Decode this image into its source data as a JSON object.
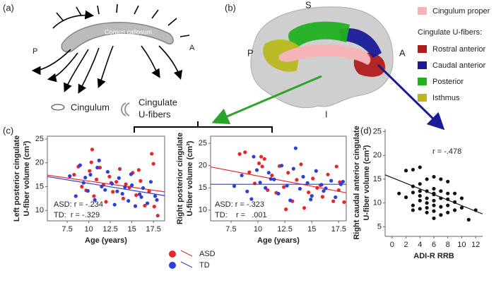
{
  "panels": {
    "a": {
      "label": "(a)",
      "corpus": "Corpus callosum",
      "posterior": "P",
      "anterior": "A",
      "cingulum": "Cingulum",
      "u_fibers": [
        "Cingulate",
        "U-fibers"
      ]
    },
    "b": {
      "label": "(b)",
      "superior": "S",
      "posterior": "P",
      "anterior": "A",
      "inferior": "I",
      "legend_top": {
        "label": "Cingulum proper",
        "color": "#f4b4b8"
      },
      "legend_header": "Cingulate U-fibers:",
      "legend": [
        {
          "label": "Rostral anterior",
          "color": "#b01c1c"
        },
        {
          "label": "Caudal anterior",
          "color": "#1a1a9a"
        },
        {
          "label": "Posterior",
          "color": "#22b022"
        },
        {
          "label": "Isthmus",
          "color": "#b8b820"
        }
      ]
    },
    "c": {
      "label": "(c)"
    },
    "d": {
      "label": "(d)"
    }
  },
  "chart_data": [
    {
      "type": "scatter",
      "ylabel": [
        "Left posterior cingulate",
        "U-fiber volume (cm³)"
      ],
      "xlabel": "Age (years)",
      "xlim": [
        5.2,
        18.8
      ],
      "xticks": [
        7.5,
        10.0,
        12.5,
        15.0,
        17.5
      ],
      "ylim": [
        7.8,
        25.6
      ],
      "yticks": [
        10,
        15,
        20,
        25
      ],
      "legend": "bottom",
      "annotations": [
        "ASD: r = -.234",
        "TD:  r = -.329"
      ],
      "series": [
        {
          "name": "ASD",
          "color": "#e8262a",
          "x": [
            8.3,
            8.8,
            9.2,
            9.7,
            10.1,
            10.4,
            10.6,
            10.9,
            11.3,
            11.7,
            12.0,
            12.4,
            12.8,
            13.2,
            13.6,
            14.0,
            14.3,
            14.7,
            15.1,
            15.5,
            16.0,
            16.5,
            17.0,
            17.3,
            17.6,
            18.0,
            10.3,
            12.6,
            15.8,
            17.5
          ],
          "values": [
            17.5,
            19.2,
            15.0,
            14.2,
            18.3,
            22.8,
            13.0,
            16.5,
            19.0,
            15.4,
            11.8,
            17.1,
            13.9,
            16.0,
            18.7,
            12.5,
            15.5,
            14.8,
            17.9,
            13.2,
            16.2,
            11.0,
            14.0,
            21.9,
            10.8,
            8.9,
            20.1,
            15.8,
            18.5,
            19.8
          ],
          "fit": [
            17.4,
            13.9
          ]
        },
        {
          "name": "TD",
          "color": "#2a3fdc",
          "x": [
            7.8,
            8.5,
            9.0,
            9.4,
            9.9,
            10.2,
            10.7,
            11.0,
            11.5,
            11.9,
            12.2,
            12.7,
            13.0,
            13.5,
            13.9,
            14.2,
            14.6,
            15.0,
            15.4,
            15.9,
            16.3,
            16.8,
            17.2,
            17.7,
            9.6,
            11.2,
            13.3,
            14.9,
            16.1,
            17.9
          ],
          "values": [
            17.2,
            13.0,
            19.5,
            15.8,
            14.1,
            17.5,
            12.2,
            19.0,
            15.0,
            14.3,
            18.1,
            15.6,
            11.2,
            16.8,
            13.5,
            14.9,
            12.0,
            15.3,
            10.9,
            13.4,
            14.7,
            11.5,
            16.0,
            13.0,
            16.9,
            20.5,
            14.0,
            17.6,
            12.8,
            12.2
          ],
          "fit": [
            17.1,
            13.1
          ]
        }
      ]
    },
    {
      "type": "scatter",
      "ylabel": [
        "Right posterior cingulate",
        "U-fiber volume (cm³)"
      ],
      "xlabel": "Age (years)",
      "xlim": [
        5.6,
        18.2
      ],
      "xticks": [
        7.5,
        10.0,
        12.5,
        15.0,
        17.5
      ],
      "ylim": [
        7.6,
        26.6
      ],
      "yticks": [
        10,
        15,
        20,
        25
      ],
      "annotations": [
        "ASD: r = -.323",
        "TD:    r =   .001"
      ],
      "series": [
        {
          "color": "#e8262a",
          "x": [
            8.3,
            8.8,
            9.2,
            9.7,
            10.1,
            10.4,
            10.6,
            10.9,
            11.3,
            11.7,
            12.0,
            12.4,
            12.8,
            13.2,
            13.6,
            14.0,
            14.3,
            14.7,
            15.1,
            15.5,
            16.0,
            16.5,
            17.0,
            17.3,
            17.6,
            18.0,
            10.3,
            12.6,
            15.8,
            17.5
          ],
          "values": [
            22.6,
            23.0,
            18.5,
            16.0,
            20.5,
            19.8,
            21.5,
            14.5,
            17.8,
            13.9,
            19.9,
            15.2,
            18.4,
            12.0,
            16.8,
            20.3,
            10.5,
            14.0,
            17.1,
            15.0,
            13.0,
            18.0,
            12.0,
            19.8,
            16.3,
            11.8,
            22.0,
            10.2,
            15.6,
            14.5
          ],
          "fit": [
            19.7,
            13.9
          ]
        },
        {
          "color": "#2a3fdc",
          "x": [
            7.8,
            8.5,
            9.0,
            9.4,
            9.9,
            10.2,
            10.7,
            11.0,
            11.5,
            11.9,
            12.2,
            12.7,
            13.0,
            13.5,
            13.9,
            14.2,
            14.6,
            15.0,
            15.4,
            15.9,
            16.3,
            16.8,
            17.2,
            17.7,
            9.6,
            11.2,
            13.3,
            14.9,
            16.1,
            17.9
          ],
          "values": [
            15.4,
            17.8,
            14.2,
            12.5,
            19.0,
            16.2,
            15.0,
            18.4,
            16.9,
            13.7,
            20.0,
            15.5,
            12.2,
            23.9,
            14.8,
            17.5,
            16.1,
            13.2,
            18.8,
            15.7,
            14.9,
            16.6,
            12.9,
            15.8,
            22.0,
            17.0,
            19.3,
            12.4,
            14.3,
            16.4
          ],
          "fit": [
            15.8,
            15.8
          ]
        }
      ]
    },
    {
      "type": "scatter",
      "ylabel": [
        "Right caudal anterior cingulate",
        "U-fiber volume (cm³)"
      ],
      "xlabel": "ADI-R RRB",
      "xlim": [
        -1,
        13
      ],
      "xticks": [
        0,
        2,
        4,
        6,
        8,
        10,
        12
      ],
      "ylim": [
        3,
        25.5
      ],
      "yticks": [
        5,
        10,
        15,
        20,
        25
      ],
      "annotations": [
        "r = -.478"
      ],
      "series": [
        {
          "color": "#111111",
          "x": [
            1,
            2,
            2,
            3,
            3,
            3,
            3,
            4,
            4,
            4,
            4,
            4,
            5,
            5,
            5,
            5,
            5,
            5,
            6,
            6,
            6,
            6,
            6,
            6,
            6,
            7,
            7,
            7,
            7,
            7,
            8,
            8,
            8,
            8,
            8,
            9,
            9,
            9,
            10,
            10,
            11,
            12,
            4,
            6,
            3
          ],
          "values": [
            12.0,
            16.8,
            11.2,
            13.5,
            17.0,
            12.2,
            9.5,
            17.5,
            14.0,
            12.5,
            10.5,
            8.8,
            15.0,
            12.5,
            11.0,
            10.0,
            9.0,
            8.0,
            15.5,
            13.0,
            11.8,
            10.5,
            9.5,
            8.3,
            6.8,
            15.0,
            12.5,
            11.0,
            9.2,
            7.5,
            14.5,
            12.0,
            10.8,
            9.5,
            8.0,
            12.0,
            10.2,
            8.5,
            11.0,
            9.0,
            6.5,
            8.5,
            11.5,
            12.0,
            8.5
          ],
          "fit": [
            15.9,
            7.7
          ]
        }
      ]
    }
  ]
}
